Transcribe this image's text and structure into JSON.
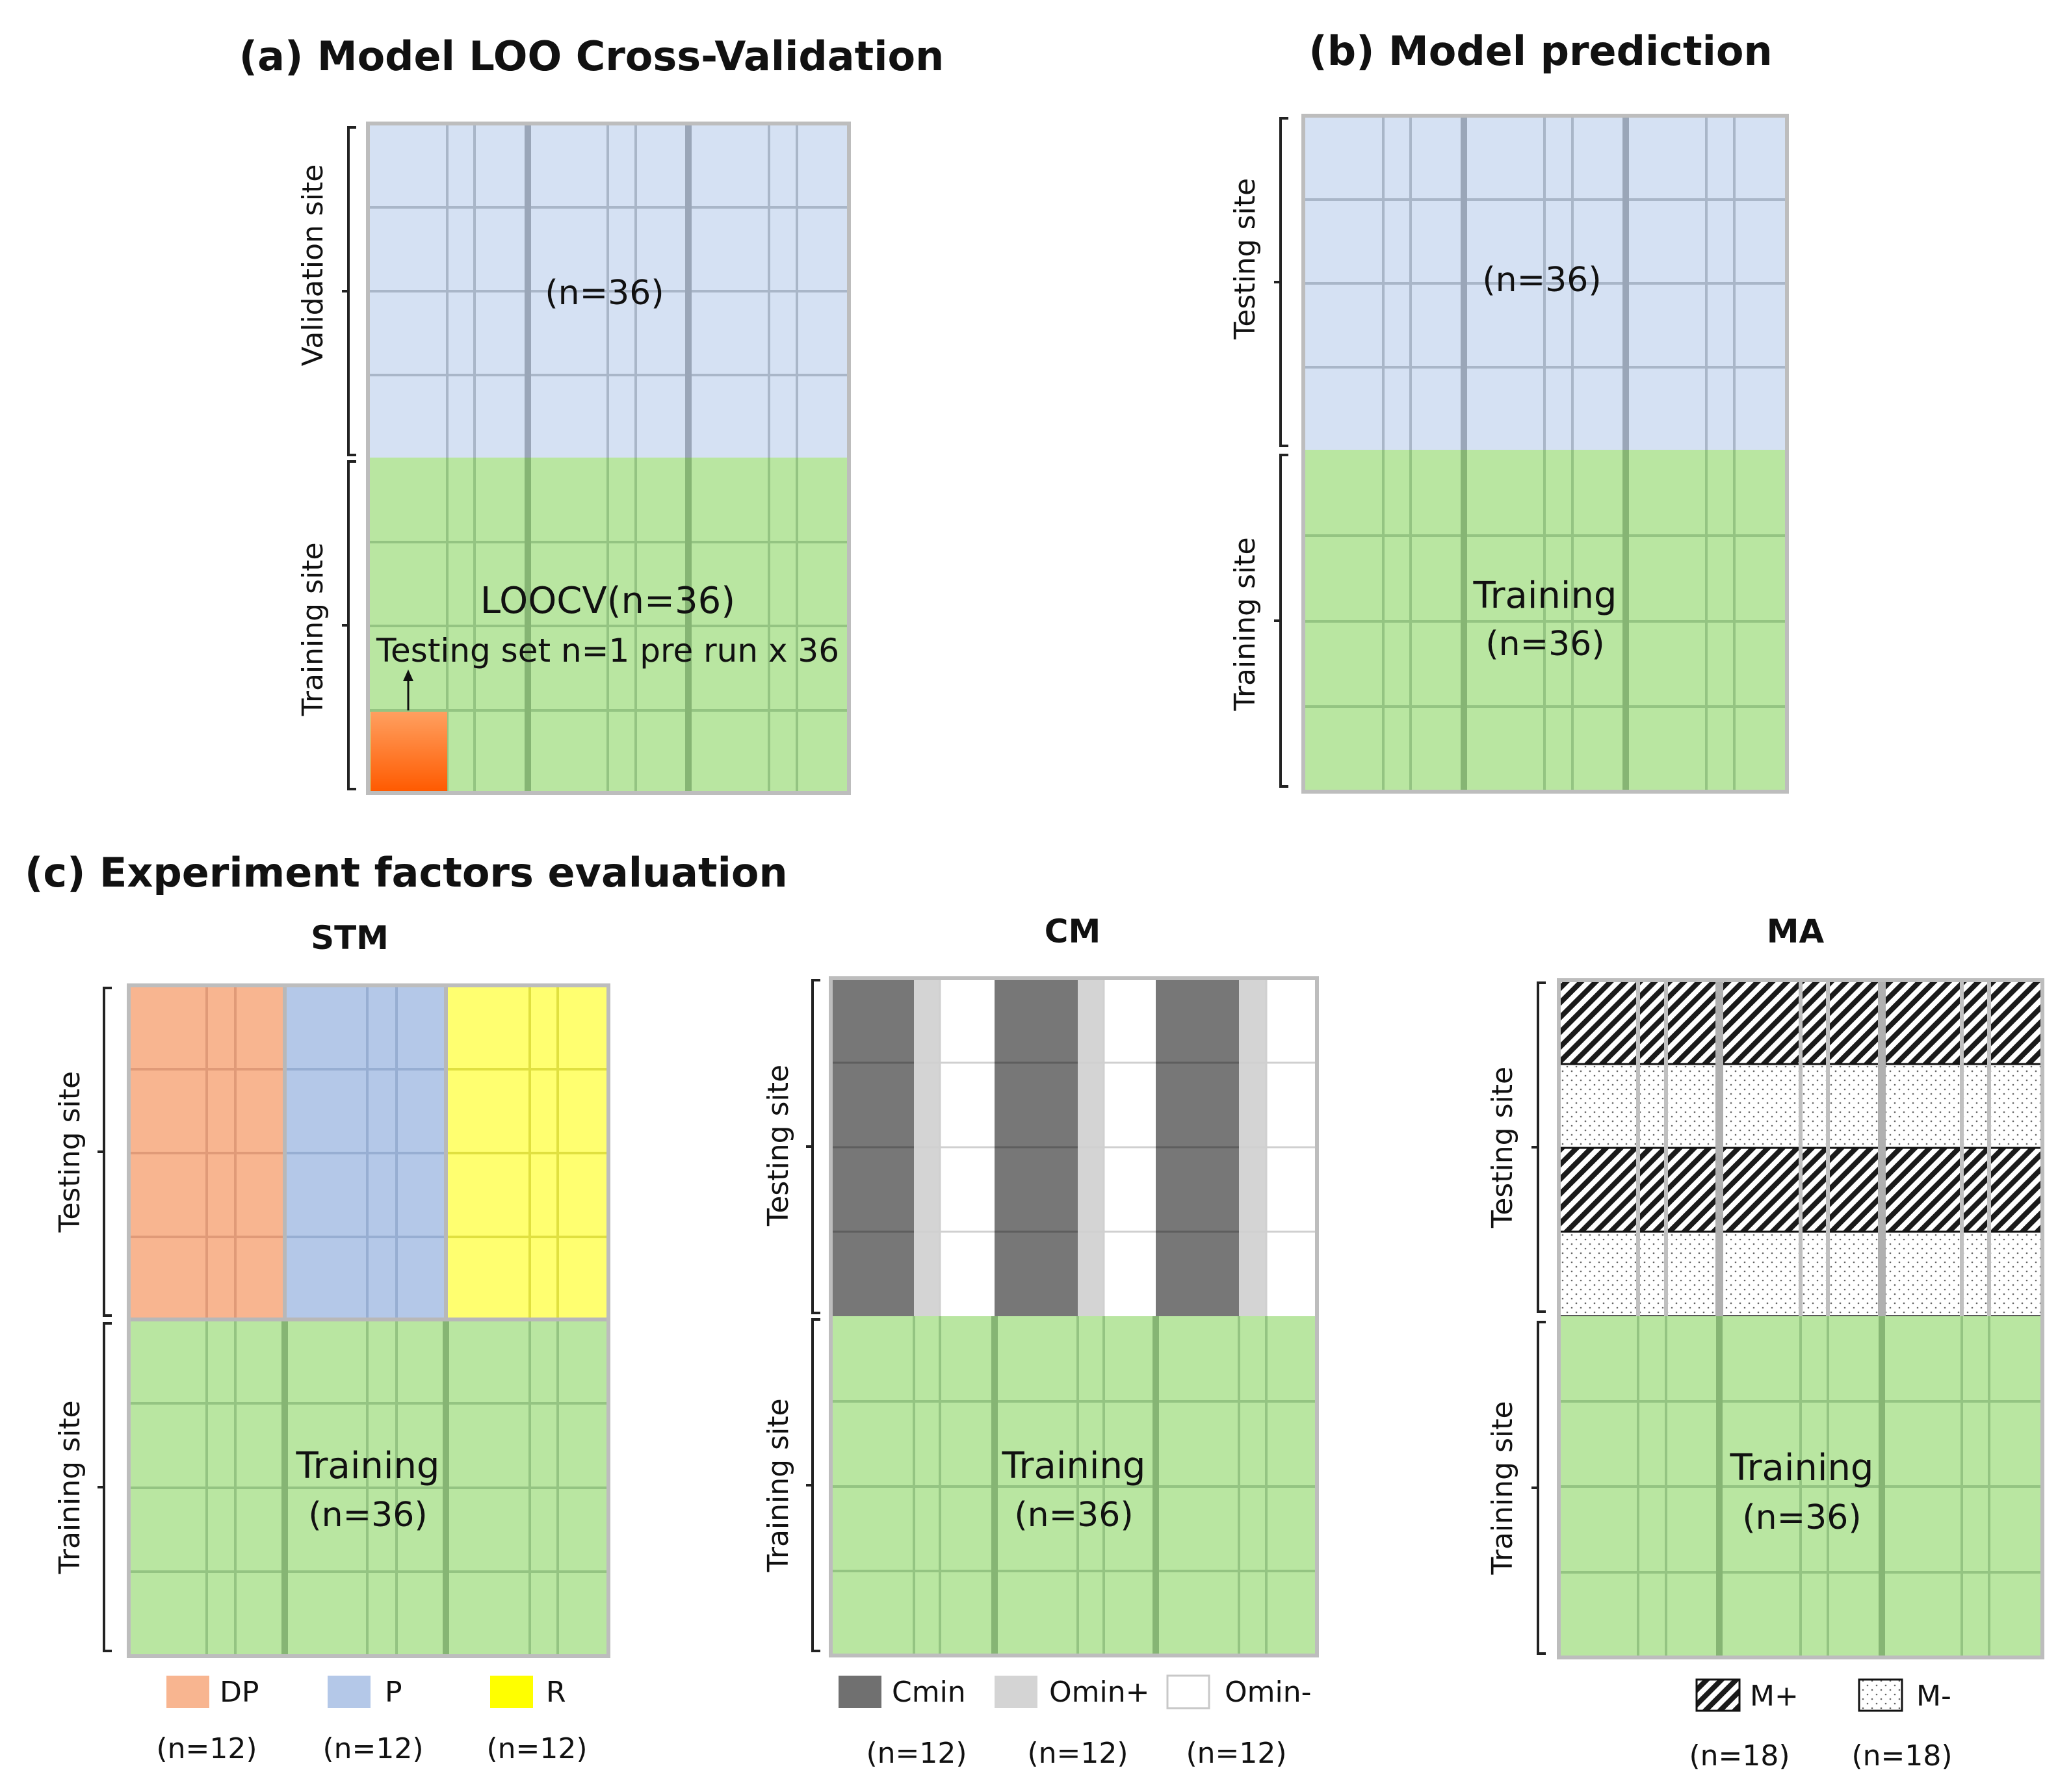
{
  "panel_a": {
    "title": "(a) Model LOO Cross-Validation",
    "upper_side_label": "Validation site",
    "lower_side_label": "Training site",
    "upper_label": "(n=36)",
    "lower_label_1": "LOOCV(n=36)",
    "lower_label_2": "Testing set n=1 pre run x 36"
  },
  "panel_b": {
    "title": "(b) Model prediction",
    "upper_side_label": "Testing site",
    "lower_side_label": "Training site",
    "upper_label": "(n=36)",
    "lower_label_1": "Training",
    "lower_label_2": "(n=36)"
  },
  "panel_c": {
    "title": "(c) Experiment factors evaluation",
    "stm": {
      "title": "STM",
      "upper_side_label": "Testing site",
      "lower_side_label": "Training site",
      "lower_label_1": "Training",
      "lower_label_2": "(n=36)",
      "legend": [
        {
          "label": "DP",
          "count": "(n=12)",
          "color": "#f8b590"
        },
        {
          "label": "P",
          "count": "(n=12)",
          "color": "#b4c8e8"
        },
        {
          "label": "R",
          "count": "(n=12)",
          "color": "#ffff00"
        }
      ]
    },
    "cm": {
      "title": "CM",
      "upper_side_label": "Testing site",
      "lower_side_label": "Training site",
      "lower_label_1": "Training",
      "lower_label_2": "(n=36)",
      "legend": [
        {
          "label": "Cmin",
          "count": "(n=12)",
          "color": "#707070"
        },
        {
          "label": "Omin+",
          "count": "(n=12)",
          "color": "#d4d4d4"
        },
        {
          "label": "Omin-",
          "count": "(n=12)",
          "color": "#ffffff"
        }
      ]
    },
    "ma": {
      "title": "MA",
      "upper_side_label": "Testing site",
      "lower_side_label": "Training site",
      "lower_label_1": "Training",
      "lower_label_2": "(n=36)",
      "legend": [
        {
          "label": "M+",
          "count": "(n=18)",
          "pattern": "hatch"
        },
        {
          "label": "M-",
          "count": "(n=18)",
          "pattern": "dots"
        }
      ]
    }
  },
  "colors": {
    "validation_blue": "#d5e1f3",
    "training_green": "#b9e6a1",
    "grid_blue": "#a9b6c8",
    "grid_green": "#94c482",
    "frame": "#bdbdbd",
    "highlight_orange": "#ff6a0a"
  }
}
